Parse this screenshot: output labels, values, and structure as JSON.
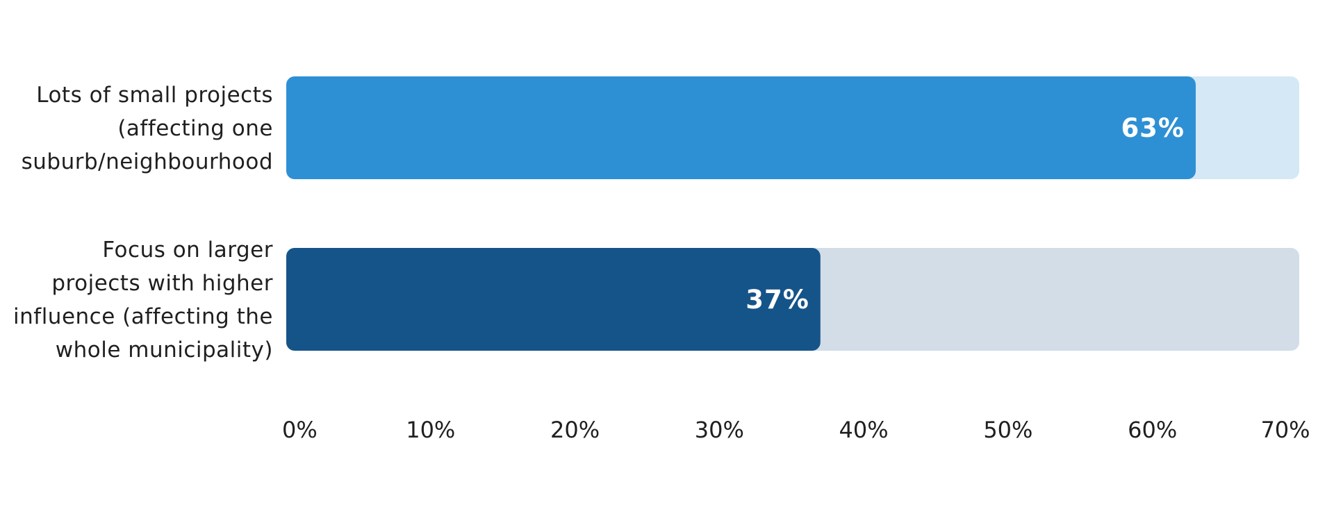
{
  "chart_data": {
    "type": "bar",
    "orientation": "horizontal",
    "title": "",
    "xlabel": "",
    "ylabel": "",
    "xlim": [
      0,
      70
    ],
    "grid": false,
    "legend": "none",
    "categories": [
      "Lots of small projects (affecting one suburb/neighbourhood",
      "Focus on larger projects with higher influence (affecting the whole municipality)"
    ],
    "category_lines": [
      [
        "Lots of small projects",
        "(affecting one",
        "suburb/neighbourhood"
      ],
      [
        "Focus on larger",
        "projects with higher",
        "influence (affecting the",
        "whole municipality)"
      ]
    ],
    "values": [
      63,
      37
    ],
    "data_labels": [
      "63%",
      "37%"
    ],
    "bar_colors": [
      "#2e90d4",
      "#155489"
    ],
    "track_colors": [
      "#d5e8f5",
      "#d2dde8"
    ],
    "x_ticks": [
      {
        "value": 0,
        "label": "0%"
      },
      {
        "value": 10,
        "label": "10%"
      },
      {
        "value": 20,
        "label": "20%"
      },
      {
        "value": 30,
        "label": "30%"
      },
      {
        "value": 40,
        "label": "40%"
      },
      {
        "value": 50,
        "label": "50%"
      },
      {
        "value": 60,
        "label": "60%"
      },
      {
        "value": 70,
        "label": "70%"
      }
    ]
  }
}
